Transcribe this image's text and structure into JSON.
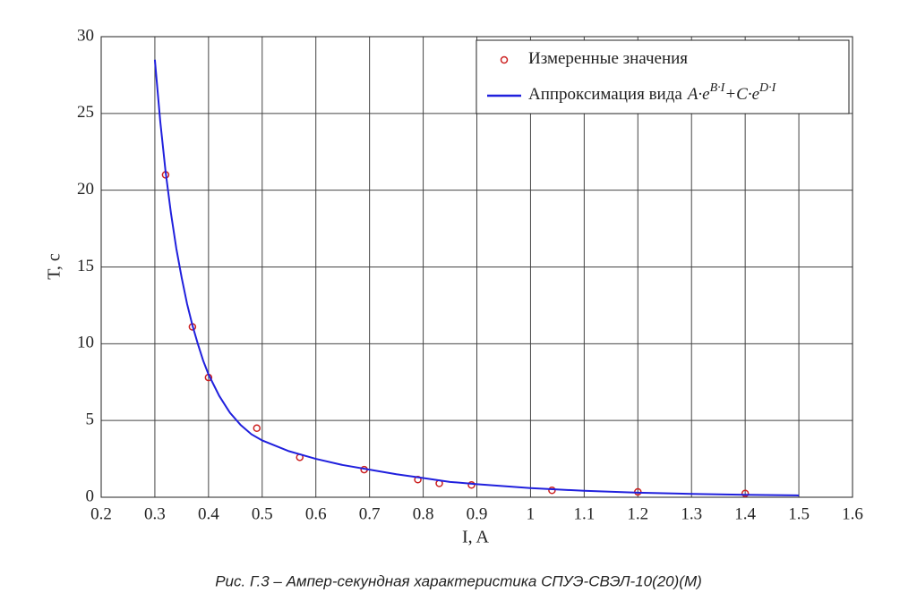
{
  "chart_data": {
    "type": "scatter",
    "caption": "Рис. Г.3 – Ампер-секундная характеристика СПУЭ-СВЭЛ-10(20)(М)",
    "xlabel": "I, A",
    "ylabel": "T, c",
    "xlim": [
      0.2,
      1.6
    ],
    "ylim": [
      0,
      30
    ],
    "xticks": [
      0.2,
      0.3,
      0.4,
      0.5,
      0.6,
      0.7,
      0.8,
      0.9,
      1,
      1.1,
      1.2,
      1.3,
      1.4,
      1.5,
      1.6
    ],
    "yticks": [
      0,
      5,
      10,
      15,
      20,
      25,
      30
    ],
    "grid": true,
    "legend": "upper right",
    "series": [
      {
        "name": "Измеренные значения",
        "style": "marker",
        "color": "#cc2020",
        "x": [
          0.32,
          0.37,
          0.4,
          0.49,
          0.57,
          0.69,
          0.79,
          0.83,
          0.89,
          1.04,
          1.2,
          1.4
        ],
        "values": [
          21,
          11.1,
          7.8,
          4.5,
          2.6,
          1.8,
          1.15,
          0.9,
          0.8,
          0.45,
          0.35,
          0.25
        ]
      },
      {
        "name": "Аппроксимация вида",
        "formula": [
          "A·e",
          "B·I",
          "+C·e",
          "D·I"
        ],
        "style": "line",
        "color": "#2020dd",
        "x": [
          0.3,
          0.31,
          0.32,
          0.33,
          0.34,
          0.35,
          0.36,
          0.37,
          0.38,
          0.39,
          0.4,
          0.42,
          0.44,
          0.46,
          0.48,
          0.5,
          0.55,
          0.6,
          0.65,
          0.7,
          0.75,
          0.8,
          0.85,
          0.9,
          1.0,
          1.1,
          1.2,
          1.3,
          1.4,
          1.5
        ],
        "values": [
          28.5,
          24.5,
          21.2,
          18.5,
          16.2,
          14.3,
          12.6,
          11.2,
          10.0,
          8.9,
          8.0,
          6.6,
          5.5,
          4.7,
          4.1,
          3.7,
          3.0,
          2.5,
          2.1,
          1.8,
          1.5,
          1.25,
          1.0,
          0.85,
          0.6,
          0.42,
          0.3,
          0.22,
          0.16,
          0.12
        ]
      }
    ]
  }
}
